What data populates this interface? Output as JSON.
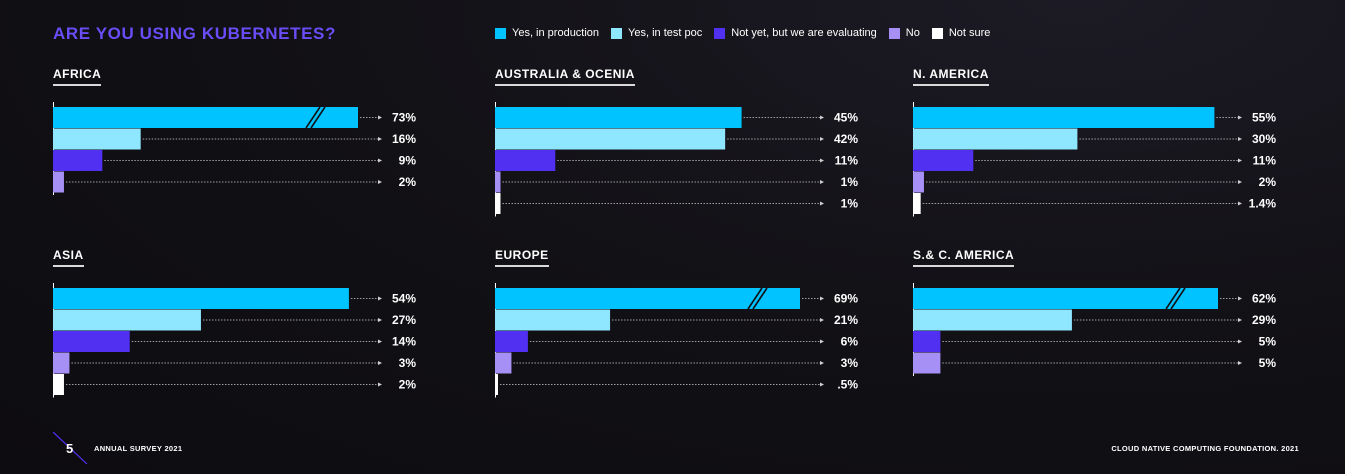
{
  "title": "ARE YOU USING KUBERNETES?",
  "legend": [
    {
      "label": "Yes, in production",
      "color": "#00c3ff"
    },
    {
      "label": "Yes, in test poc",
      "color": "#8ee6ff"
    },
    {
      "label": "Not yet, but we are evaluating",
      "color": "#5230f2"
    },
    {
      "label": "No",
      "color": "#a690f6"
    },
    {
      "label": "Not sure",
      "color": "#ffffff"
    }
  ],
  "chart_data": [
    {
      "type": "bar",
      "title": "AFRICA",
      "orientation": "horizontal",
      "broken_first_bar": true,
      "categories": [
        "Yes, in production",
        "Yes, in test poc",
        "Not yet, but we are evaluating",
        "No"
      ],
      "values": [
        73,
        16,
        9,
        2
      ],
      "labels": [
        "73%",
        "16%",
        "9%",
        "2%"
      ]
    },
    {
      "type": "bar",
      "title": "AUSTRALIA & OCENIA",
      "orientation": "horizontal",
      "broken_first_bar": false,
      "categories": [
        "Yes, in production",
        "Yes, in test poc",
        "Not yet, but we are evaluating",
        "No",
        "Not sure"
      ],
      "values": [
        45,
        42,
        11,
        1,
        1
      ],
      "labels": [
        "45%",
        "42%",
        "11%",
        "1%",
        "1%"
      ]
    },
    {
      "type": "bar",
      "title": "N. AMERICA",
      "orientation": "horizontal",
      "broken_first_bar": false,
      "categories": [
        "Yes, in production",
        "Yes, in test poc",
        "Not yet, but we are evaluating",
        "No",
        "Not sure"
      ],
      "values": [
        55,
        30,
        11,
        2,
        1.4
      ],
      "labels": [
        "55%",
        "30%",
        "11%",
        "2%",
        "1.4%"
      ]
    },
    {
      "type": "bar",
      "title": "ASIA",
      "orientation": "horizontal",
      "broken_first_bar": false,
      "categories": [
        "Yes, in production",
        "Yes, in test poc",
        "Not yet, but we are evaluating",
        "No",
        "Not sure"
      ],
      "values": [
        54,
        27,
        14,
        3,
        2
      ],
      "labels": [
        "54%",
        "27%",
        "14%",
        "3%",
        "2%"
      ]
    },
    {
      "type": "bar",
      "title": "EUROPE",
      "orientation": "horizontal",
      "broken_first_bar": true,
      "categories": [
        "Yes, in production",
        "Yes, in test poc",
        "Not yet, but we are evaluating",
        "No",
        "Not sure"
      ],
      "values": [
        69,
        21,
        6,
        3,
        0.5
      ],
      "labels": [
        "69%",
        "21%",
        "6%",
        "3%",
        ".5%"
      ]
    },
    {
      "type": "bar",
      "title": "S.& C. AMERICA",
      "orientation": "horizontal",
      "broken_first_bar": true,
      "categories": [
        "Yes, in production",
        "Yes, in test poc",
        "Not yet, but we are evaluating",
        "No"
      ],
      "values": [
        62,
        29,
        5,
        5
      ],
      "labels": [
        "62%",
        "29%",
        "5%",
        "5%"
      ]
    }
  ],
  "footer": {
    "page_number": "5",
    "survey": "ANNUAL SURVEY 2021",
    "foundation": "CLOUD NATIVE COMPUTING FOUNDATION.  2021"
  }
}
